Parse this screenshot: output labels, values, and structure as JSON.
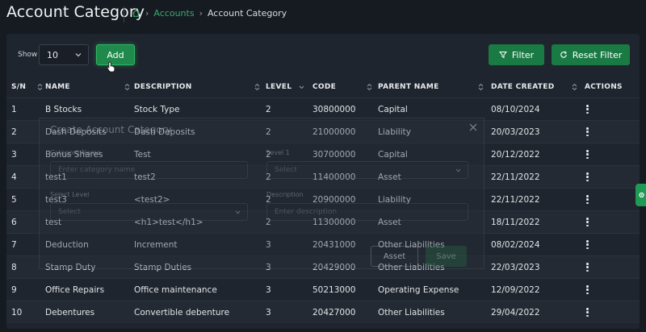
{
  "header": {
    "title": "Account Category",
    "breadcrumb": {
      "parent": "Accounts",
      "current": "Account Category"
    }
  },
  "toolbar": {
    "show_label": "Show",
    "page_size": "10",
    "add_label": "Add",
    "filter_label": "Filter",
    "reset_label": "Reset Filter"
  },
  "table": {
    "columns": [
      "S/N",
      "NAME",
      "DESCRIPTION",
      "LEVEL",
      "CODE",
      "PARENT NAME",
      "DATE CREATED",
      "ACTIONS"
    ],
    "rows": [
      {
        "sn": "1",
        "name": "B Stocks",
        "description": "Stock Type",
        "level": "2",
        "code": "30800000",
        "parent": "Capital",
        "date": "08/10/2024"
      },
      {
        "sn": "2",
        "name": "Dash Deposits",
        "description": "Dash Deposits",
        "level": "2",
        "code": "21000000",
        "parent": "Liability",
        "date": "20/03/2023"
      },
      {
        "sn": "3",
        "name": "Bonus Shares",
        "description": "Test",
        "level": "2",
        "code": "30700000",
        "parent": "Capital",
        "date": "20/12/2022"
      },
      {
        "sn": "4",
        "name": "test1",
        "description": "test2",
        "level": "2",
        "code": "11400000",
        "parent": "Asset",
        "date": "22/11/2022"
      },
      {
        "sn": "5",
        "name": "test3",
        "description": "<test2>",
        "level": "2",
        "code": "20900000",
        "parent": "Liability",
        "date": "22/11/2022"
      },
      {
        "sn": "6",
        "name": "test",
        "description": "<h1>test</h1>",
        "level": "2",
        "code": "11300000",
        "parent": "Asset",
        "date": "18/11/2022"
      },
      {
        "sn": "7",
        "name": "Deduction",
        "description": "Increment",
        "level": "3",
        "code": "20431000",
        "parent": "Other Liabilities",
        "date": "08/02/2024"
      },
      {
        "sn": "8",
        "name": "Stamp Duty",
        "description": "Stamp Duties",
        "level": "3",
        "code": "20429000",
        "parent": "Other Liabilities",
        "date": "22/03/2023"
      },
      {
        "sn": "9",
        "name": "Office Repairs",
        "description": "Office maintenance",
        "level": "3",
        "code": "50213000",
        "parent": "Operating Expense",
        "date": "12/09/2022"
      },
      {
        "sn": "10",
        "name": "Debentures",
        "description": "Convertible debenture",
        "level": "3",
        "code": "20427000",
        "parent": "Other Liabilities",
        "date": "29/04/2022"
      }
    ]
  },
  "modal": {
    "title": "Create Account Category",
    "category_name_label": "Category Name",
    "category_name_placeholder": "Enter category name",
    "level1_label": "Level 1",
    "level1_placeholder": "Select",
    "select_level_label": "Select Level",
    "select_level_placeholder": "Select",
    "description_label": "Description",
    "description_placeholder": "Enter description",
    "asset_button": "Asset",
    "save_button": "Save"
  },
  "colors": {
    "accent": "#1f8a4c",
    "link": "#3aa86b",
    "background": "#161b22",
    "panel": "#1f252e"
  }
}
